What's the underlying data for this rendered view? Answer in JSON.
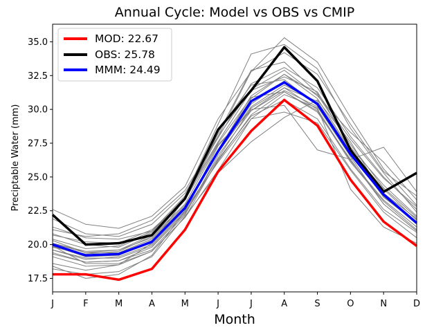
{
  "chart_data": {
    "type": "line",
    "title": "Annual Cycle: Model vs OBS vs CMIP",
    "xlabel": "Month",
    "ylabel": "Preciptable Water (mm)",
    "categories": [
      "J",
      "F",
      "M",
      "A",
      "M",
      "J",
      "J",
      "A",
      "S",
      "O",
      "N",
      "D"
    ],
    "ylim": [
      16.5,
      36.3
    ],
    "yticks": [
      17.5,
      20.0,
      22.5,
      25.0,
      27.5,
      30.0,
      32.5,
      35.0
    ],
    "ytick_labels": [
      "17.5",
      "20.0",
      "22.5",
      "25.0",
      "27.5",
      "30.0",
      "32.5",
      "35.0"
    ],
    "legend_position": "upper-left",
    "series": [
      {
        "name": "MOD: 22.67",
        "color": "#ff0000",
        "values": [
          17.8,
          17.8,
          17.4,
          18.2,
          21.1,
          25.4,
          28.4,
          30.7,
          28.8,
          24.8,
          21.7,
          19.9
        ]
      },
      {
        "name": "OBS: 25.78",
        "color": "#000000",
        "values": [
          22.2,
          20.0,
          20.1,
          20.7,
          23.4,
          28.5,
          31.4,
          34.6,
          32.1,
          27.0,
          23.9,
          25.3
        ]
      },
      {
        "name": "MMM: 24.49",
        "color": "#0000ff",
        "values": [
          20.0,
          19.2,
          19.3,
          20.2,
          22.7,
          26.9,
          30.6,
          32.0,
          30.4,
          26.7,
          23.7,
          21.6
        ]
      }
    ],
    "cmip_color": "#808080",
    "cmip_members": [
      [
        22.6,
        21.5,
        21.2,
        22.1,
        24.3,
        29.3,
        32.8,
        34.2,
        32.6,
        28.9,
        25.4,
        23.6
      ],
      [
        21.3,
        20.5,
        20.4,
        21.0,
        23.4,
        28.2,
        32.9,
        33.5,
        31.2,
        27.8,
        24.9,
        22.8
      ],
      [
        20.8,
        20.0,
        19.8,
        20.9,
        23.5,
        27.6,
        31.4,
        32.4,
        31.3,
        27.2,
        24.4,
        22.1
      ],
      [
        20.3,
        19.4,
        19.4,
        20.4,
        22.8,
        27.0,
        31.0,
        32.6,
        30.8,
        27.0,
        24.1,
        21.8
      ],
      [
        19.9,
        19.1,
        19.2,
        20.2,
        22.7,
        26.8,
        30.4,
        32.1,
        30.3,
        26.6,
        23.6,
        21.5
      ],
      [
        19.6,
        19.0,
        19.0,
        19.9,
        22.4,
        26.4,
        30.1,
        31.6,
        30.0,
        26.2,
        23.3,
        21.3
      ],
      [
        19.4,
        18.7,
        18.8,
        19.8,
        22.3,
        26.2,
        29.6,
        31.3,
        29.9,
        26.1,
        23.2,
        21.1
      ],
      [
        20.1,
        19.5,
        19.6,
        20.7,
        23.3,
        28.0,
        32.8,
        35.3,
        33.5,
        29.4,
        25.6,
        22.9
      ],
      [
        19.3,
        18.7,
        18.8,
        19.6,
        22.2,
        26.6,
        29.9,
        31.4,
        30.2,
        26.5,
        23.0,
        21.0
      ],
      [
        19.1,
        18.4,
        18.5,
        19.5,
        22.0,
        26.3,
        29.5,
        30.7,
        29.3,
        25.6,
        22.6,
        20.9
      ],
      [
        18.4,
        17.5,
        17.8,
        19.2,
        22.5,
        27.3,
        30.0,
        30.3,
        27.0,
        26.3,
        23.0,
        21.0
      ],
      [
        18.6,
        18.1,
        18.5,
        20.1,
        23.4,
        28.4,
        31.8,
        32.2,
        30.3,
        26.8,
        23.5,
        21.7
      ],
      [
        19.8,
        19.3,
        19.5,
        20.6,
        23.0,
        27.4,
        29.9,
        31.6,
        30.6,
        26.9,
        23.5,
        21.6
      ],
      [
        21.1,
        20.6,
        20.8,
        21.8,
        24.0,
        28.0,
        31.5,
        32.9,
        31.0,
        28.3,
        26.1,
        23.3
      ],
      [
        19.9,
        18.6,
        18.6,
        19.5,
        22.0,
        25.5,
        29.3,
        31.1,
        30.1,
        24.1,
        21.3,
        20.1
      ],
      [
        20.4,
        19.7,
        19.9,
        21.0,
        23.6,
        28.9,
        34.1,
        34.8,
        33.0,
        28.6,
        25.3,
        22.4
      ],
      [
        20.7,
        20.2,
        20.1,
        21.1,
        23.3,
        27.5,
        30.9,
        31.3,
        29.8,
        26.3,
        27.2,
        23.9
      ],
      [
        19.6,
        18.9,
        19.1,
        20.0,
        22.5,
        27.0,
        30.8,
        32.6,
        31.1,
        27.4,
        24.2,
        22.0
      ],
      [
        19.9,
        19.2,
        19.3,
        20.3,
        22.6,
        26.1,
        29.3,
        29.8,
        29.0,
        25.5,
        22.4,
        20.5
      ],
      [
        18.2,
        17.8,
        18.0,
        19.1,
        22.1,
        25.3,
        27.6,
        29.4,
        30.7,
        27.6,
        23.6,
        21.5
      ],
      [
        20.1,
        19.4,
        19.6,
        20.5,
        22.9,
        26.8,
        30.2,
        31.8,
        30.5,
        26.9,
        23.8,
        21.9
      ],
      [
        21.9,
        20.8,
        20.6,
        21.5,
        23.8,
        27.9,
        31.9,
        33.1,
        31.6,
        28.0,
        25.0,
        22.6
      ]
    ]
  }
}
